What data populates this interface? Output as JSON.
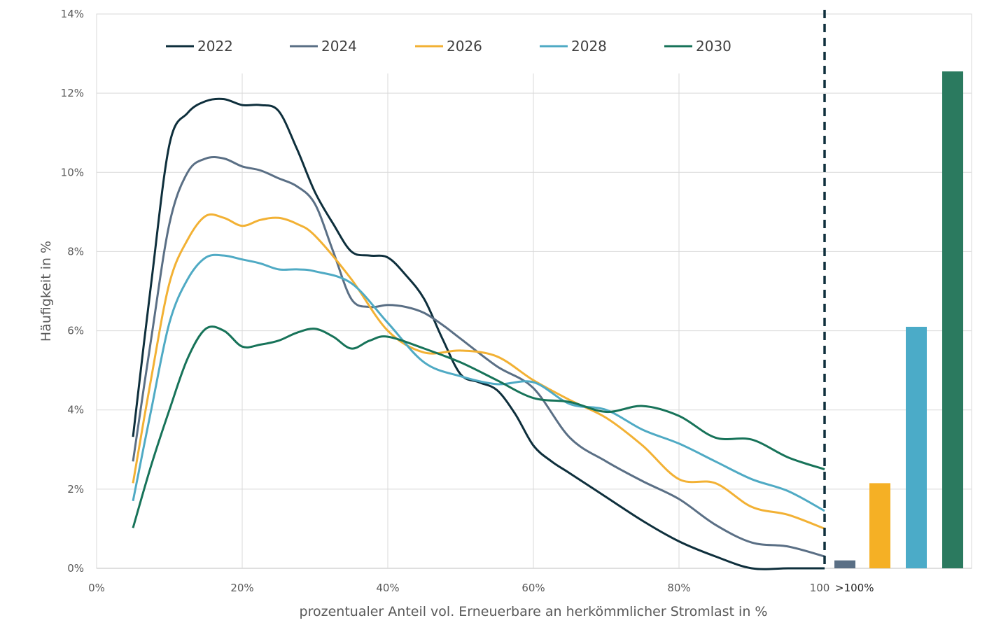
{
  "chart_data": {
    "type": "line",
    "title": "",
    "xlabel": "prozentualer Anteil vol. Erneuerbare an herkömmlicher Stromlast in %",
    "ylabel": "Häufigkeit in %",
    "xlim": [
      0,
      100
    ],
    "ylim": [
      0,
      14
    ],
    "x_ticks": [
      "0%",
      "20%",
      "40%",
      "60%",
      "80%",
      "100"
    ],
    "y_ticks": [
      "0%",
      "2%",
      "4%",
      "6%",
      "8%",
      "10%",
      "12%",
      "14%"
    ],
    "grid": true,
    "legend_position": "top",
    "threshold_line": {
      "x": 100,
      "style": "dashed",
      "color": "#0e2f3c"
    },
    "series": [
      {
        "name": "2022",
        "color": "#0e2f3c",
        "x": [
          5,
          7.5,
          10,
          12.5,
          15,
          17.5,
          20,
          22.5,
          25,
          27.5,
          30,
          32.5,
          35,
          37.5,
          40,
          42.5,
          45,
          47.5,
          50,
          52.5,
          55,
          57.5,
          60,
          62.5,
          65,
          70,
          75,
          80,
          85,
          90,
          95,
          100
        ],
        "y": [
          3.32,
          7.2,
          10.7,
          11.5,
          11.8,
          11.85,
          11.7,
          11.7,
          11.55,
          10.6,
          9.5,
          8.7,
          8.0,
          7.9,
          7.85,
          7.4,
          6.8,
          5.8,
          4.9,
          4.7,
          4.5,
          3.9,
          3.1,
          2.7,
          2.4,
          1.8,
          1.2,
          0.68,
          0.3,
          0.0,
          0.0,
          0.0
        ]
      },
      {
        "name": "2024",
        "color": "#5a6f85",
        "x": [
          5,
          7.5,
          10,
          12.5,
          15,
          17.5,
          20,
          22.5,
          25,
          27.5,
          30,
          32.5,
          35,
          37.5,
          40,
          42.5,
          45,
          47.5,
          50,
          55,
          60,
          65,
          70,
          75,
          80,
          85,
          90,
          95,
          100
        ],
        "y": [
          2.7,
          5.8,
          8.7,
          10.0,
          10.35,
          10.35,
          10.15,
          10.05,
          9.85,
          9.65,
          9.2,
          8.0,
          6.8,
          6.6,
          6.65,
          6.6,
          6.45,
          6.15,
          5.8,
          5.1,
          4.55,
          3.3,
          2.7,
          2.2,
          1.75,
          1.1,
          0.65,
          0.55,
          0.3
        ]
      },
      {
        "name": "2026",
        "color": "#f2b134",
        "x": [
          5,
          7.5,
          10,
          12.5,
          15,
          17.5,
          20,
          22.5,
          25,
          27.5,
          30,
          35,
          40,
          45,
          50,
          55,
          60,
          65,
          70,
          75,
          80,
          85,
          90,
          95,
          100
        ],
        "y": [
          2.15,
          4.8,
          7.2,
          8.3,
          8.9,
          8.85,
          8.65,
          8.8,
          8.85,
          8.7,
          8.4,
          7.3,
          6.0,
          5.45,
          5.5,
          5.35,
          4.75,
          4.25,
          3.8,
          3.1,
          2.25,
          2.15,
          1.55,
          1.35,
          1.0
        ]
      },
      {
        "name": "2028",
        "color": "#4faac4",
        "x": [
          5,
          7.5,
          10,
          12.5,
          15,
          17.5,
          20,
          22.5,
          25,
          27.5,
          30,
          35,
          40,
          45,
          50,
          55,
          60,
          65,
          70,
          75,
          80,
          85,
          90,
          95,
          100
        ],
        "y": [
          1.7,
          4.0,
          6.2,
          7.3,
          7.85,
          7.9,
          7.8,
          7.7,
          7.55,
          7.55,
          7.5,
          7.2,
          6.2,
          5.2,
          4.85,
          4.65,
          4.7,
          4.15,
          4.0,
          3.5,
          3.15,
          2.7,
          2.25,
          1.95,
          1.45
        ]
      },
      {
        "name": "2030",
        "color": "#177359",
        "x": [
          5,
          7.5,
          10,
          12.5,
          15,
          17.5,
          20,
          22.5,
          25,
          27.5,
          30,
          32.5,
          35,
          37.5,
          40,
          45,
          50,
          55,
          60,
          65,
          70,
          75,
          80,
          85,
          90,
          95,
          100
        ],
        "y": [
          1.02,
          2.6,
          4.0,
          5.3,
          6.05,
          6.0,
          5.6,
          5.65,
          5.75,
          5.95,
          6.05,
          5.85,
          5.55,
          5.75,
          5.85,
          5.55,
          5.2,
          4.75,
          4.3,
          4.2,
          3.95,
          4.1,
          3.85,
          3.3,
          3.25,
          2.8,
          2.5
        ]
      }
    ],
    "overflow_bars": {
      "label": ">100%",
      "bars": [
        {
          "series": "2024",
          "value": 0.2,
          "color": "#5a6f85"
        },
        {
          "series": "2026",
          "value": 2.15,
          "color": "#f5b025"
        },
        {
          "series": "2028",
          "value": 6.1,
          "color": "#4babc8"
        },
        {
          "series": "2030",
          "value": 12.55,
          "color": "#2b7a5f"
        }
      ]
    }
  }
}
